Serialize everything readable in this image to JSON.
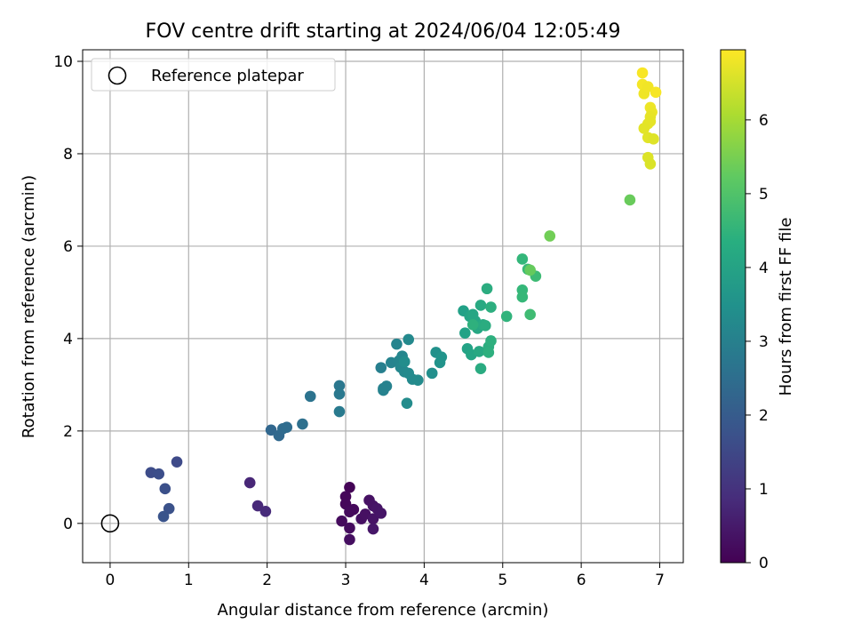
{
  "chart_data": {
    "type": "scatter",
    "title": "FOV centre drift starting at 2024/06/04 12:05:49",
    "xlabel": "Angular distance from reference (arcmin)",
    "ylabel": "Rotation from reference (arcmin)",
    "xlim": [
      -0.35,
      7.3
    ],
    "ylim": [
      -0.85,
      10.25
    ],
    "xticks": [
      0,
      1,
      2,
      3,
      4,
      5,
      6,
      7
    ],
    "yticks": [
      0,
      2,
      4,
      6,
      8,
      10
    ],
    "grid": true,
    "legend": {
      "position": "top-left",
      "entries": [
        "Reference platepar"
      ]
    },
    "reference_point": {
      "x": 0,
      "y": 0
    },
    "colorbar": {
      "label": "Hours from first FF file",
      "range": [
        0,
        6.95
      ],
      "ticks": [
        0,
        1,
        2,
        3,
        4,
        5,
        6
      ],
      "colormap": "viridis"
    },
    "points": [
      {
        "x": 3.05,
        "y": 0.78,
        "t": 0.05
      },
      {
        "x": 3.0,
        "y": 0.58,
        "t": 0.1
      },
      {
        "x": 3.0,
        "y": 0.42,
        "t": 0.12
      },
      {
        "x": 3.1,
        "y": 0.3,
        "t": 0.15
      },
      {
        "x": 3.05,
        "y": 0.25,
        "t": 0.18
      },
      {
        "x": 2.95,
        "y": 0.05,
        "t": 0.2
      },
      {
        "x": 3.05,
        "y": -0.1,
        "t": 0.22
      },
      {
        "x": 3.05,
        "y": -0.35,
        "t": 0.25
      },
      {
        "x": 3.2,
        "y": 0.1,
        "t": 0.28
      },
      {
        "x": 3.25,
        "y": 0.2,
        "t": 0.3
      },
      {
        "x": 3.3,
        "y": 0.5,
        "t": 0.32
      },
      {
        "x": 3.35,
        "y": 0.38,
        "t": 0.34
      },
      {
        "x": 3.35,
        "y": 0.1,
        "t": 0.36
      },
      {
        "x": 3.4,
        "y": 0.32,
        "t": 0.38
      },
      {
        "x": 3.45,
        "y": 0.22,
        "t": 0.4
      },
      {
        "x": 3.35,
        "y": -0.12,
        "t": 0.42
      },
      {
        "x": 1.78,
        "y": 0.88,
        "t": 0.75
      },
      {
        "x": 1.88,
        "y": 0.38,
        "t": 0.8
      },
      {
        "x": 1.98,
        "y": 0.26,
        "t": 0.85
      },
      {
        "x": 0.85,
        "y": 1.33,
        "t": 1.55
      },
      {
        "x": 0.52,
        "y": 1.1,
        "t": 1.6
      },
      {
        "x": 0.62,
        "y": 1.07,
        "t": 1.65
      },
      {
        "x": 0.7,
        "y": 0.75,
        "t": 1.7
      },
      {
        "x": 0.75,
        "y": 0.32,
        "t": 1.75
      },
      {
        "x": 0.68,
        "y": 0.15,
        "t": 1.8
      },
      {
        "x": 2.05,
        "y": 2.02,
        "t": 2.3
      },
      {
        "x": 2.15,
        "y": 1.9,
        "t": 2.35
      },
      {
        "x": 2.2,
        "y": 2.05,
        "t": 2.4
      },
      {
        "x": 2.25,
        "y": 2.08,
        "t": 2.45
      },
      {
        "x": 2.45,
        "y": 2.15,
        "t": 2.55
      },
      {
        "x": 2.55,
        "y": 2.75,
        "t": 2.65
      },
      {
        "x": 2.92,
        "y": 2.98,
        "t": 2.75
      },
      {
        "x": 2.92,
        "y": 2.8,
        "t": 2.8
      },
      {
        "x": 2.92,
        "y": 2.42,
        "t": 2.85
      },
      {
        "x": 3.45,
        "y": 3.37,
        "t": 3.0
      },
      {
        "x": 3.48,
        "y": 2.92,
        "t": 3.05
      },
      {
        "x": 3.52,
        "y": 2.97,
        "t": 3.08
      },
      {
        "x": 3.48,
        "y": 2.88,
        "t": 3.1
      },
      {
        "x": 3.58,
        "y": 3.48,
        "t": 3.12
      },
      {
        "x": 3.65,
        "y": 3.88,
        "t": 3.15
      },
      {
        "x": 3.68,
        "y": 3.52,
        "t": 3.18
      },
      {
        "x": 3.72,
        "y": 3.62,
        "t": 3.2
      },
      {
        "x": 3.7,
        "y": 3.38,
        "t": 3.22
      },
      {
        "x": 3.75,
        "y": 3.28,
        "t": 3.25
      },
      {
        "x": 3.8,
        "y": 3.98,
        "t": 3.28
      },
      {
        "x": 3.8,
        "y": 3.25,
        "t": 3.3
      },
      {
        "x": 3.85,
        "y": 3.12,
        "t": 3.32
      },
      {
        "x": 3.92,
        "y": 3.1,
        "t": 3.34
      },
      {
        "x": 3.78,
        "y": 2.6,
        "t": 3.36
      },
      {
        "x": 3.75,
        "y": 3.5,
        "t": 3.38
      },
      {
        "x": 4.1,
        "y": 3.25,
        "t": 3.45
      },
      {
        "x": 4.15,
        "y": 3.7,
        "t": 3.5
      },
      {
        "x": 4.2,
        "y": 3.48,
        "t": 3.55
      },
      {
        "x": 4.22,
        "y": 3.6,
        "t": 3.58
      },
      {
        "x": 4.5,
        "y": 4.6,
        "t": 3.95
      },
      {
        "x": 4.52,
        "y": 4.12,
        "t": 4.0
      },
      {
        "x": 4.55,
        "y": 3.78,
        "t": 4.02
      },
      {
        "x": 4.58,
        "y": 4.48,
        "t": 4.05
      },
      {
        "x": 4.6,
        "y": 3.65,
        "t": 4.08
      },
      {
        "x": 4.62,
        "y": 4.52,
        "t": 4.1
      },
      {
        "x": 4.65,
        "y": 4.38,
        "t": 4.12
      },
      {
        "x": 4.68,
        "y": 4.22,
        "t": 4.15
      },
      {
        "x": 4.7,
        "y": 3.72,
        "t": 4.18
      },
      {
        "x": 4.72,
        "y": 4.72,
        "t": 4.2
      },
      {
        "x": 4.75,
        "y": 4.3,
        "t": 4.22
      },
      {
        "x": 4.72,
        "y": 3.35,
        "t": 4.25
      },
      {
        "x": 4.78,
        "y": 4.28,
        "t": 4.28
      },
      {
        "x": 4.8,
        "y": 5.08,
        "t": 4.3
      },
      {
        "x": 4.82,
        "y": 3.82,
        "t": 4.32
      },
      {
        "x": 4.85,
        "y": 4.68,
        "t": 4.35
      },
      {
        "x": 4.85,
        "y": 3.95,
        "t": 4.38
      },
      {
        "x": 4.82,
        "y": 3.7,
        "t": 4.4
      },
      {
        "x": 4.62,
        "y": 4.3,
        "t": 4.42
      },
      {
        "x": 5.05,
        "y": 4.48,
        "t": 4.5
      },
      {
        "x": 5.25,
        "y": 5.72,
        "t": 4.6
      },
      {
        "x": 5.25,
        "y": 5.05,
        "t": 4.62
      },
      {
        "x": 5.25,
        "y": 4.9,
        "t": 4.65
      },
      {
        "x": 5.32,
        "y": 5.5,
        "t": 4.7
      },
      {
        "x": 5.42,
        "y": 5.35,
        "t": 4.75
      },
      {
        "x": 5.35,
        "y": 4.52,
        "t": 4.78
      },
      {
        "x": 5.35,
        "y": 5.48,
        "t": 5.3
      },
      {
        "x": 5.6,
        "y": 6.22,
        "t": 5.45
      },
      {
        "x": 6.62,
        "y": 7.0,
        "t": 5.35
      },
      {
        "x": 6.78,
        "y": 9.75,
        "t": 6.9
      },
      {
        "x": 6.78,
        "y": 9.5,
        "t": 6.85
      },
      {
        "x": 6.8,
        "y": 9.3,
        "t": 6.8
      },
      {
        "x": 6.85,
        "y": 9.45,
        "t": 6.82
      },
      {
        "x": 6.95,
        "y": 9.33,
        "t": 6.88
      },
      {
        "x": 6.88,
        "y": 9.0,
        "t": 6.78
      },
      {
        "x": 6.9,
        "y": 8.9,
        "t": 6.75
      },
      {
        "x": 6.88,
        "y": 8.8,
        "t": 6.72
      },
      {
        "x": 6.85,
        "y": 8.65,
        "t": 6.7
      },
      {
        "x": 6.88,
        "y": 8.7,
        "t": 6.7
      },
      {
        "x": 6.8,
        "y": 8.55,
        "t": 6.68
      },
      {
        "x": 6.85,
        "y": 8.35,
        "t": 6.65
      },
      {
        "x": 6.92,
        "y": 8.32,
        "t": 6.62
      },
      {
        "x": 6.85,
        "y": 7.92,
        "t": 6.6
      },
      {
        "x": 6.88,
        "y": 7.78,
        "t": 6.58
      }
    ]
  }
}
